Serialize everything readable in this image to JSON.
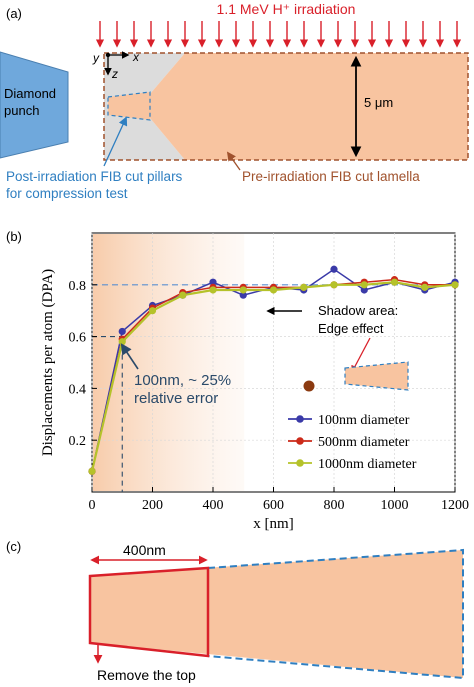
{
  "panel_a": {
    "label": "(a)",
    "irradiation": "1.1 MeV H⁺ irradiation",
    "diamond_punch": [
      "Diamond",
      "punch"
    ],
    "thickness": "5 μm",
    "post_irradiation": [
      "Post-irradiation FIB cut pillars",
      "for compression test"
    ],
    "pre_irradiation": "Pre-irradiation FIB cut lamella",
    "axis_y": "y",
    "axis_x": "x",
    "axis_z": "z",
    "colors": {
      "red": "#d9202a",
      "blue": "#2f7fc1",
      "brown": "#a0522d",
      "salmon": "#f8c4a0",
      "punch": "#6fa8dc",
      "grey": "#dcdcdc"
    }
  },
  "panel_b": {
    "label": "(b)",
    "annot_shadow": [
      "Shadow area:",
      "Edge effect"
    ],
    "annot_error": [
      "100nm, ~ 25%",
      "relative error"
    ]
  },
  "panel_c": {
    "label": "(c)",
    "width_label": "400nm",
    "remove_label": "Remove the top"
  },
  "chart_data": {
    "type": "line",
    "xlabel": "x [nm]",
    "ylabel": "Displacements per atom (DPA)",
    "xlim": [
      0,
      1200
    ],
    "ylim": [
      0,
      1.0
    ],
    "xticks": [
      "0",
      "200",
      "400",
      "600",
      "800",
      "1000",
      "1200"
    ],
    "yticks": [
      "0.2",
      "0.4",
      "0.6",
      "0.8"
    ],
    "legend_position": "lower-right",
    "reference_line_y": 0.8,
    "series": [
      {
        "name": "100nm diameter",
        "color": "#3a3aa8",
        "x": [
          0,
          100,
          200,
          300,
          400,
          500,
          600,
          700,
          800,
          900,
          1000,
          1100,
          1200
        ],
        "y": [
          0.08,
          0.62,
          0.72,
          0.76,
          0.81,
          0.76,
          0.79,
          0.78,
          0.86,
          0.78,
          0.81,
          0.78,
          0.81
        ]
      },
      {
        "name": "500nm diameter",
        "color": "#cc2a1a",
        "x": [
          0,
          100,
          200,
          300,
          400,
          500,
          600,
          700,
          800,
          900,
          1000,
          1100,
          1200
        ],
        "y": [
          0.08,
          0.59,
          0.71,
          0.77,
          0.79,
          0.79,
          0.79,
          0.79,
          0.8,
          0.81,
          0.82,
          0.8,
          0.8
        ]
      },
      {
        "name": "1000nm diameter",
        "color": "#b5c22a",
        "x": [
          0,
          100,
          200,
          300,
          400,
          500,
          600,
          700,
          800,
          900,
          1000,
          1100,
          1200
        ],
        "y": [
          0.08,
          0.58,
          0.7,
          0.76,
          0.78,
          0.78,
          0.78,
          0.79,
          0.8,
          0.8,
          0.81,
          0.79,
          0.8
        ]
      }
    ]
  }
}
